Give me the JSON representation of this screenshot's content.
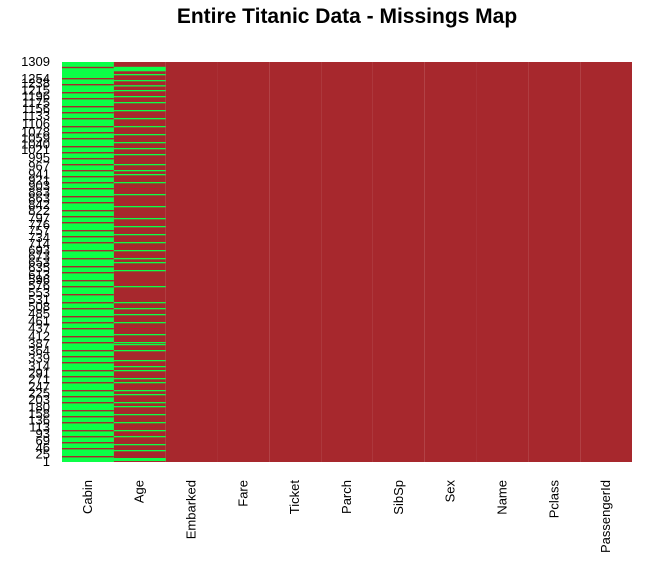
{
  "chart_data": {
    "type": "heatmap",
    "title": "Entire Titanic Data - Missings Map",
    "columns": [
      "Cabin",
      "Age",
      "Embarked",
      "Fare",
      "Ticket",
      "Parch",
      "SibSp",
      "Sex",
      "Name",
      "Pclass",
      "PassengerId"
    ],
    "row_count": 1309,
    "row_ticks": [
      "1309",
      "1254",
      "1238",
      "1215",
      "1196",
      "1175",
      "1156",
      "1133",
      "1106",
      "1078",
      "1059",
      "1040",
      "1021",
      "995",
      "967",
      "941",
      "921",
      "903",
      "883",
      "863",
      "842",
      "822",
      "797",
      "776",
      "757",
      "734",
      "714",
      "693",
      "673",
      "653",
      "635",
      "613",
      "596",
      "576",
      "553",
      "531",
      "508",
      "485",
      "461",
      "437",
      "412",
      "387",
      "364",
      "339",
      "314",
      "291",
      "271",
      "247",
      "225",
      "203",
      "180",
      "158",
      "136",
      "113",
      "93",
      "69",
      "46",
      "25",
      "1"
    ],
    "missing_color": "#ff0000",
    "missing_display_color": "#0cff47",
    "observed_color": "#a7282d",
    "legend": "none",
    "missing_bands": {
      "Cabin": [
        [
          0.0,
          0.012
        ],
        [
          0.985,
          1.0
        ]
      ],
      "Age": [
        [
          0.008,
          0.011
        ],
        [
          0.06,
          0.063
        ],
        [
          0.12,
          0.124
        ],
        [
          0.155,
          0.158
        ],
        [
          0.205,
          0.208
        ],
        [
          0.255,
          0.258
        ],
        [
          0.305,
          0.308
        ],
        [
          0.345,
          0.35
        ],
        [
          0.45,
          0.454
        ],
        [
          0.52,
          0.523
        ],
        [
          0.585,
          0.589
        ],
        [
          0.64,
          0.643
        ],
        [
          0.71,
          0.713
        ],
        [
          0.765,
          0.769
        ],
        [
          0.825,
          0.828
        ],
        [
          0.88,
          0.884
        ],
        [
          0.94,
          0.943
        ]
      ]
    }
  }
}
